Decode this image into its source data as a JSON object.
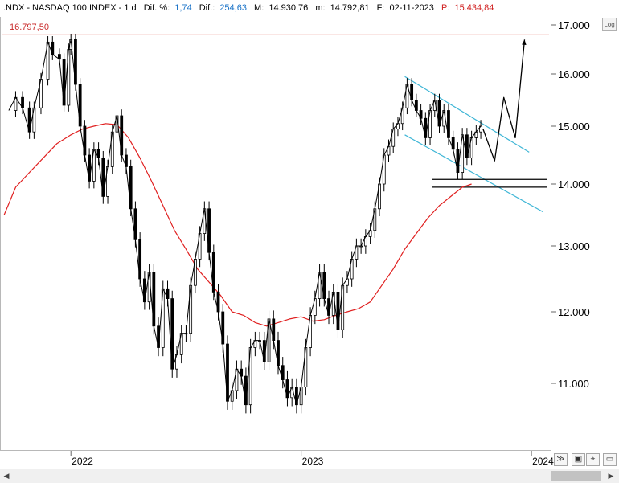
{
  "header": {
    "symbol": ".NDX - NASDAQ 100 INDEX - 1 d",
    "dif_pct_label": "Dif. %:",
    "dif_pct_value": "1,74",
    "dif_label": "Dif.:",
    "dif_value": "254,63",
    "max_label": "M:",
    "max_value": "14.930,76",
    "min_label": "m:",
    "min_value": "14.792,81",
    "date_label": "F:",
    "date_value": "02-11-2023",
    "price_label": "P:",
    "price_value": "15.434,84"
  },
  "chart_data": {
    "type": "line",
    "ylim": [
      10200,
      17200
    ],
    "y_ticks": [
      "17.000",
      "16.000",
      "15.000",
      "14.000",
      "13.000",
      "12.000",
      "11.000"
    ],
    "x_ticks": [
      "2022",
      "2023",
      "2024"
    ],
    "reference_line": {
      "value": 16797.5,
      "label": "16.797,50",
      "color": "#d9342b"
    },
    "support_lines": [
      14080,
      13950
    ],
    "series": [
      {
        "style": "price",
        "color": "#000000",
        "values": [
          [
            2021.73,
            15300
          ],
          [
            2021.76,
            15550
          ],
          [
            2021.79,
            15350
          ],
          [
            2021.82,
            14900
          ],
          [
            2021.84,
            15350
          ],
          [
            2021.87,
            15900
          ],
          [
            2021.9,
            16650
          ],
          [
            2021.92,
            16400
          ],
          [
            2021.95,
            16300
          ],
          [
            2021.97,
            15400
          ],
          [
            2021.99,
            16500
          ],
          [
            2022.0,
            16700
          ],
          [
            2022.02,
            15800
          ],
          [
            2022.04,
            15000
          ],
          [
            2022.06,
            14500
          ],
          [
            2022.08,
            14050
          ],
          [
            2022.1,
            14600
          ],
          [
            2022.12,
            14450
          ],
          [
            2022.14,
            13800
          ],
          [
            2022.16,
            14300
          ],
          [
            2022.18,
            14900
          ],
          [
            2022.2,
            15200
          ],
          [
            2022.22,
            14500
          ],
          [
            2022.24,
            14300
          ],
          [
            2022.26,
            13600
          ],
          [
            2022.28,
            13100
          ],
          [
            2022.3,
            12500
          ],
          [
            2022.32,
            12150
          ],
          [
            2022.34,
            12600
          ],
          [
            2022.36,
            11800
          ],
          [
            2022.38,
            11500
          ],
          [
            2022.4,
            12350
          ],
          [
            2022.42,
            12200
          ],
          [
            2022.44,
            11200
          ],
          [
            2022.46,
            11400
          ],
          [
            2022.48,
            11700
          ],
          [
            2022.5,
            11700
          ],
          [
            2022.52,
            12400
          ],
          [
            2022.54,
            12800
          ],
          [
            2022.56,
            13200
          ],
          [
            2022.58,
            13600
          ],
          [
            2022.6,
            12900
          ],
          [
            2022.62,
            12300
          ],
          [
            2022.64,
            12000
          ],
          [
            2022.66,
            11550
          ],
          [
            2022.68,
            10750
          ],
          [
            2022.7,
            10900
          ],
          [
            2022.72,
            11200
          ],
          [
            2022.74,
            11100
          ],
          [
            2022.76,
            10700
          ],
          [
            2022.78,
            11500
          ],
          [
            2022.8,
            11600
          ],
          [
            2022.82,
            11600
          ],
          [
            2022.84,
            11300
          ],
          [
            2022.86,
            11900
          ],
          [
            2022.88,
            11600
          ],
          [
            2022.9,
            11250
          ],
          [
            2022.92,
            11050
          ],
          [
            2022.94,
            10800
          ],
          [
            2022.96,
            10950
          ],
          [
            2022.98,
            10700
          ],
          [
            2023.0,
            10950
          ],
          [
            2023.02,
            11500
          ],
          [
            2023.04,
            11950
          ],
          [
            2023.06,
            12200
          ],
          [
            2023.08,
            12600
          ],
          [
            2023.1,
            12200
          ],
          [
            2023.12,
            11950
          ],
          [
            2023.14,
            12300
          ],
          [
            2023.16,
            11750
          ],
          [
            2023.18,
            12400
          ],
          [
            2023.2,
            12500
          ],
          [
            2023.22,
            12800
          ],
          [
            2023.24,
            13000
          ],
          [
            2023.26,
            13000
          ],
          [
            2023.28,
            13150
          ],
          [
            2023.3,
            13250
          ],
          [
            2023.32,
            13600
          ],
          [
            2023.34,
            14000
          ],
          [
            2023.36,
            14500
          ],
          [
            2023.38,
            14650
          ],
          [
            2023.4,
            14950
          ],
          [
            2023.42,
            15050
          ],
          [
            2023.44,
            15350
          ],
          [
            2023.46,
            15800
          ],
          [
            2023.48,
            15500
          ],
          [
            2023.5,
            15300
          ],
          [
            2023.52,
            15150
          ],
          [
            2023.54,
            14800
          ],
          [
            2023.56,
            15300
          ],
          [
            2023.58,
            15500
          ],
          [
            2023.6,
            15000
          ],
          [
            2023.62,
            15300
          ],
          [
            2023.64,
            14800
          ],
          [
            2023.66,
            14600
          ],
          [
            2023.68,
            14200
          ],
          [
            2023.7,
            14850
          ],
          [
            2023.72,
            14450
          ],
          [
            2023.74,
            14800
          ],
          [
            2023.76,
            14900
          ],
          [
            2023.78,
            15000
          ]
        ]
      },
      {
        "style": "moving-average",
        "color": "#e02020",
        "values": [
          [
            2021.71,
            13500
          ],
          [
            2021.76,
            13950
          ],
          [
            2021.82,
            14200
          ],
          [
            2021.88,
            14450
          ],
          [
            2021.94,
            14700
          ],
          [
            2022.0,
            14850
          ],
          [
            2022.05,
            14950
          ],
          [
            2022.1,
            15000
          ],
          [
            2022.15,
            15050
          ],
          [
            2022.2,
            15030
          ],
          [
            2022.25,
            14800
          ],
          [
            2022.3,
            14450
          ],
          [
            2022.35,
            14050
          ],
          [
            2022.4,
            13650
          ],
          [
            2022.45,
            13250
          ],
          [
            2022.5,
            12950
          ],
          [
            2022.55,
            12650
          ],
          [
            2022.6,
            12450
          ],
          [
            2022.65,
            12250
          ],
          [
            2022.7,
            12000
          ],
          [
            2022.75,
            11950
          ],
          [
            2022.8,
            11850
          ],
          [
            2022.85,
            11800
          ],
          [
            2022.9,
            11850
          ],
          [
            2022.95,
            11900
          ],
          [
            2023.0,
            11930
          ],
          [
            2023.05,
            11870
          ],
          [
            2023.1,
            11890
          ],
          [
            2023.15,
            11950
          ],
          [
            2023.2,
            12000
          ],
          [
            2023.25,
            12050
          ],
          [
            2023.3,
            12150
          ],
          [
            2023.35,
            12400
          ],
          [
            2023.4,
            12650
          ],
          [
            2023.45,
            12950
          ],
          [
            2023.5,
            13200
          ],
          [
            2023.55,
            13450
          ],
          [
            2023.6,
            13650
          ],
          [
            2023.65,
            13800
          ],
          [
            2023.7,
            13950
          ],
          [
            2023.74,
            14000
          ]
        ]
      },
      {
        "style": "projection",
        "color": "#000000",
        "values": [
          [
            2023.79,
            14950
          ],
          [
            2023.84,
            14400
          ],
          [
            2023.88,
            15550
          ],
          [
            2023.93,
            14800
          ],
          [
            2023.97,
            16700
          ]
        ]
      }
    ],
    "channel_lines": [
      {
        "color": "#3fb6d6",
        "points": [
          [
            2023.45,
            15950
          ],
          [
            2023.99,
            14550
          ]
        ]
      },
      {
        "color": "#3fb6d6",
        "points": [
          [
            2023.45,
            14850
          ],
          [
            2024.05,
            13550
          ]
        ]
      }
    ]
  }
}
